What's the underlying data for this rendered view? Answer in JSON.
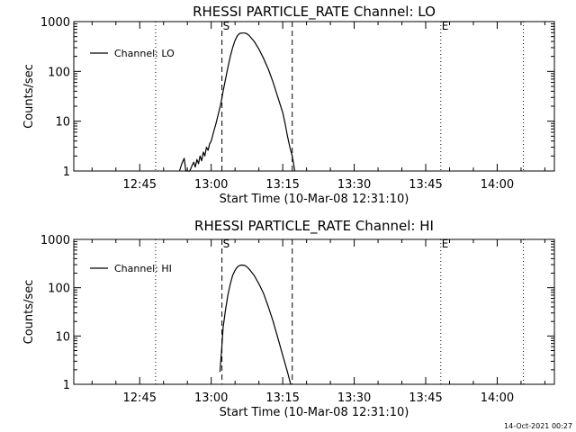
{
  "chart_data": [
    {
      "type": "line",
      "title": "RHESSI PARTICLE_RATE Channel: LO",
      "xlabel": "Start Time (10-Mar-08 12:31:10)",
      "ylabel": "Counts/sec",
      "yscale": "log",
      "ylim": [
        1,
        1000
      ],
      "xlim": [
        "12:31:10",
        "14:12:00"
      ],
      "x_ticks": [
        "12:45",
        "13:00",
        "13:15",
        "13:30",
        "13:45",
        "14:00"
      ],
      "y_ticks": [
        "1",
        "10",
        "100",
        "1000"
      ],
      "legend": {
        "position": "top-left",
        "entries": [
          "Channel: LO"
        ]
      },
      "grid": false,
      "vertical_markers": [
        {
          "time": "12:48:20",
          "style": "dotted",
          "label": ""
        },
        {
          "time": "13:02:15",
          "style": "dashed",
          "label": "S"
        },
        {
          "time": "13:17:00",
          "style": "dashed",
          "label": ""
        },
        {
          "time": "13:48:10",
          "style": "dotted",
          "label": "E"
        },
        {
          "time": "14:05:30",
          "style": "dotted",
          "label": ""
        }
      ],
      "series": [
        {
          "name": "Channel: LO",
          "points": [
            [
              "12:53:20",
              1
            ],
            [
              "12:53:50",
              1.4
            ],
            [
              "12:54:20",
              1.8
            ],
            [
              "12:54:40",
              1
            ],
            [
              "12:55:30",
              1
            ],
            [
              "12:56:00",
              1.3
            ],
            [
              "12:56:20",
              1.5
            ],
            [
              "12:56:40",
              1.2
            ],
            [
              "12:57:00",
              1.7
            ],
            [
              "12:57:20",
              1.4
            ],
            [
              "12:57:40",
              2.0
            ],
            [
              "12:58:00",
              1.6
            ],
            [
              "12:58:20",
              2.4
            ],
            [
              "12:58:40",
              2.0
            ],
            [
              "12:59:00",
              3.0
            ],
            [
              "12:59:20",
              2.6
            ],
            [
              "12:59:40",
              3.5
            ],
            [
              "13:00:00",
              4.0
            ],
            [
              "13:00:30",
              6.0
            ],
            [
              "13:01:00",
              9.0
            ],
            [
              "13:01:30",
              14
            ],
            [
              "13:02:00",
              22
            ],
            [
              "13:02:30",
              40
            ],
            [
              "13:03:00",
              70
            ],
            [
              "13:03:30",
              120
            ],
            [
              "13:04:00",
              200
            ],
            [
              "13:04:30",
              300
            ],
            [
              "13:05:00",
              420
            ],
            [
              "13:05:30",
              520
            ],
            [
              "13:06:00",
              580
            ],
            [
              "13:06:30",
              590
            ],
            [
              "13:07:00",
              590
            ],
            [
              "13:07:30",
              570
            ],
            [
              "13:08:00",
              520
            ],
            [
              "13:09:00",
              400
            ],
            [
              "13:10:00",
              280
            ],
            [
              "13:11:00",
              180
            ],
            [
              "13:12:00",
              110
            ],
            [
              "13:13:00",
              60
            ],
            [
              "13:14:00",
              30
            ],
            [
              "13:15:00",
              15
            ],
            [
              "13:15:30",
              9
            ],
            [
              "13:16:00",
              5
            ],
            [
              "13:16:30",
              3
            ],
            [
              "13:17:00",
              2
            ],
            [
              "13:17:20",
              1.3
            ],
            [
              "13:17:30",
              1
            ]
          ]
        }
      ]
    },
    {
      "type": "line",
      "title": "RHESSI PARTICLE_RATE Channel: HI",
      "xlabel": "Start Time (10-Mar-08 12:31:10)",
      "ylabel": "Counts/sec",
      "yscale": "log",
      "ylim": [
        1,
        1000
      ],
      "xlim": [
        "12:31:10",
        "14:12:00"
      ],
      "x_ticks": [
        "12:45",
        "13:00",
        "13:15",
        "13:30",
        "13:45",
        "14:00"
      ],
      "y_ticks": [
        "1",
        "10",
        "100",
        "1000"
      ],
      "legend": {
        "position": "top-left",
        "entries": [
          "Channel: HI"
        ]
      },
      "grid": false,
      "vertical_markers": [
        {
          "time": "12:48:20",
          "style": "dotted",
          "label": ""
        },
        {
          "time": "13:02:15",
          "style": "dashed",
          "label": "S"
        },
        {
          "time": "13:17:00",
          "style": "dashed",
          "label": ""
        },
        {
          "time": "13:48:10",
          "style": "dotted",
          "label": "E"
        },
        {
          "time": "14:05:30",
          "style": "dotted",
          "label": ""
        }
      ],
      "series": [
        {
          "name": "Channel: HI",
          "points": [
            [
              "13:01:50",
              1.8
            ],
            [
              "13:02:10",
              5
            ],
            [
              "13:02:30",
              15
            ],
            [
              "13:03:00",
              35
            ],
            [
              "13:03:30",
              70
            ],
            [
              "13:04:00",
              120
            ],
            [
              "13:04:30",
              180
            ],
            [
              "13:05:00",
              230
            ],
            [
              "13:05:30",
              270
            ],
            [
              "13:06:00",
              290
            ],
            [
              "13:06:30",
              295
            ],
            [
              "13:07:00",
              290
            ],
            [
              "13:07:30",
              270
            ],
            [
              "13:08:00",
              240
            ],
            [
              "13:09:00",
              180
            ],
            [
              "13:10:00",
              120
            ],
            [
              "13:11:00",
              75
            ],
            [
              "13:12:00",
              40
            ],
            [
              "13:13:00",
              20
            ],
            [
              "13:14:00",
              9
            ],
            [
              "13:15:00",
              4
            ],
            [
              "13:16:00",
              1.8
            ],
            [
              "13:16:40",
              1
            ]
          ]
        }
      ]
    }
  ],
  "footer": {
    "timestamp": "14-Oct-2021 00:27"
  }
}
